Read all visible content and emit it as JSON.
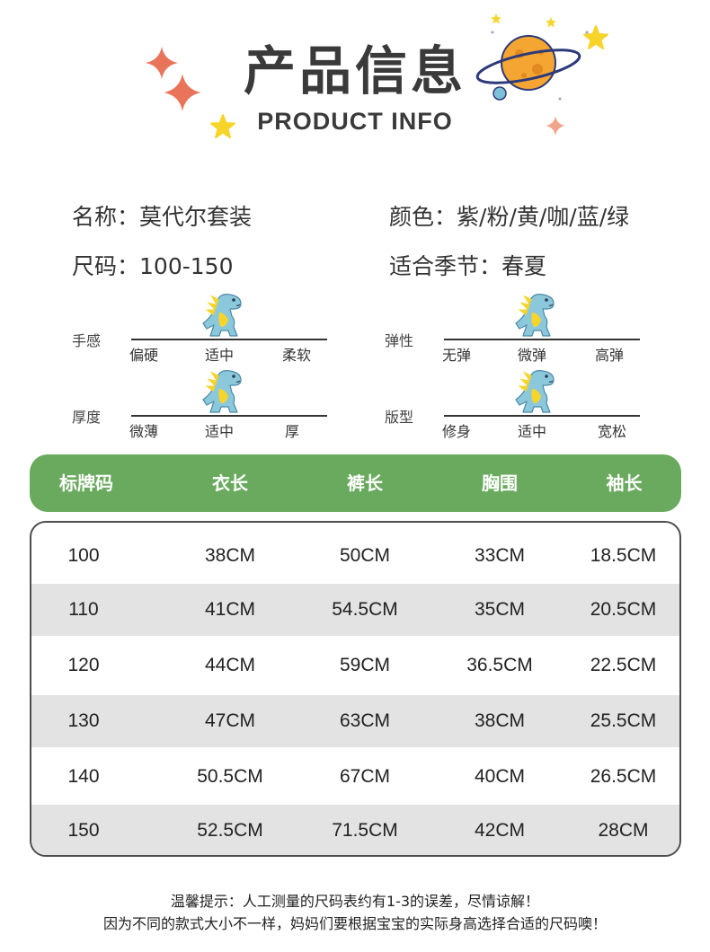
{
  "header": {
    "title_zh": "产品信息",
    "title_en": "PRODUCT INFO"
  },
  "attributes": {
    "name_label": "名称：",
    "name_value": "莫代尔套装",
    "color_label": "颜色：",
    "color_value": "紫/粉/黄/咖/蓝/绿",
    "size_label": "尺码：",
    "size_value": "100-150",
    "season_label": "适合季节：",
    "season_value": "春夏"
  },
  "scales": {
    "hand_feel": {
      "label": "手感",
      "options": [
        "偏硬",
        "适中",
        "柔软"
      ],
      "selected": 1
    },
    "elasticity": {
      "label": "弹性",
      "options": [
        "无弹",
        "微弹",
        "高弹"
      ],
      "selected": 1
    },
    "thickness": {
      "label": "厚度",
      "options": [
        "微薄",
        "适中",
        "厚"
      ],
      "selected": 1
    },
    "fit": {
      "label": "版型",
      "options": [
        "修身",
        "适中",
        "宽松"
      ],
      "selected": 1
    }
  },
  "table": {
    "headers": [
      "标牌码",
      "衣长",
      "裤长",
      "胸围",
      "袖长"
    ],
    "rows": [
      [
        "100",
        "38CM",
        "50CM",
        "33CM",
        "18.5CM"
      ],
      [
        "110",
        "41CM",
        "54.5CM",
        "35CM",
        "20.5CM"
      ],
      [
        "120",
        "44CM",
        "59CM",
        "36.5CM",
        "22.5CM"
      ],
      [
        "130",
        "47CM",
        "63CM",
        "38CM",
        "25.5CM"
      ],
      [
        "140",
        "50.5CM",
        "67CM",
        "40CM",
        "26.5CM"
      ],
      [
        "150",
        "52.5CM",
        "71.5CM",
        "42CM",
        "28CM"
      ]
    ]
  },
  "notes": {
    "line1": "温馨提示：人工测量的尺码表约有1-3的误差，尽情谅解！",
    "line2": "因为不同的款式大小不一样，妈妈们要根据宝宝的实际身高选择合适的尺码噢！"
  },
  "colors": {
    "header_green": "#6aaa5e",
    "row_alt": "#e3e3e3",
    "star_coral": "#e8755a",
    "star_yellow": "#f7d42a",
    "planet_orange": "#f5a531",
    "dino_blue": "#8cc8dc"
  },
  "icons": [
    "sparkle-icon",
    "star-icon",
    "planet-icon",
    "dinosaur-icon"
  ]
}
